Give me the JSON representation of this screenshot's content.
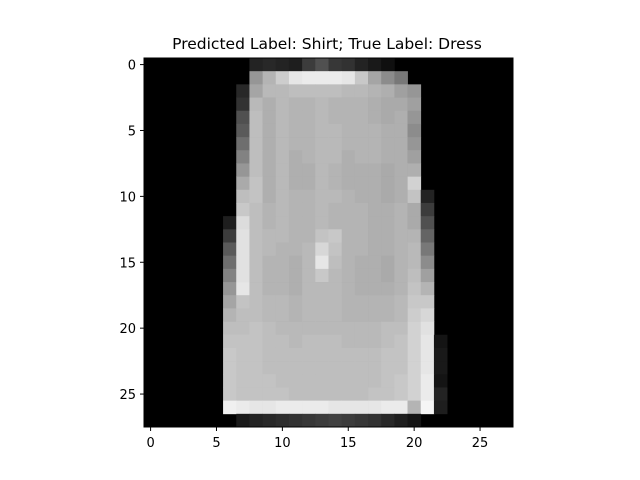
{
  "chart_data": {
    "type": "heatmap",
    "title": "Predicted Label: Shirt; True Label: Dress",
    "xlabel": "",
    "ylabel": "",
    "colormap": "gray",
    "vmin": 0,
    "vmax": 255,
    "rows": 28,
    "cols": 28,
    "x_ticks": [
      0,
      5,
      10,
      15,
      20,
      25
    ],
    "y_ticks": [
      0,
      5,
      10,
      15,
      20,
      25
    ],
    "xlim": [
      -0.5,
      27.5
    ],
    "ylim": [
      27.5,
      -0.5
    ],
    "grid": false,
    "pixel_rows": [
      {
        "start": 8,
        "values": [
          35,
          40,
          35,
          30,
          60,
          80,
          55,
          50,
          35,
          25,
          15
        ]
      },
      {
        "start": 8,
        "values": [
          150,
          180,
          205,
          230,
          235,
          235,
          235,
          230,
          200,
          165,
          140,
          120
        ]
      },
      {
        "start": 7,
        "values": [
          40,
          165,
          185,
          185,
          190,
          190,
          190,
          190,
          185,
          185,
          180,
          175,
          160,
          150
        ]
      },
      {
        "start": 7,
        "values": [
          50,
          185,
          175,
          185,
          180,
          180,
          185,
          180,
          180,
          180,
          175,
          170,
          170,
          160
        ]
      },
      {
        "start": 7,
        "values": [
          80,
          190,
          175,
          185,
          180,
          180,
          185,
          180,
          180,
          180,
          175,
          170,
          175,
          150
        ]
      },
      {
        "start": 7,
        "values": [
          90,
          190,
          175,
          185,
          180,
          180,
          185,
          185,
          180,
          180,
          180,
          175,
          175,
          140
        ]
      },
      {
        "start": 7,
        "values": [
          110,
          190,
          175,
          185,
          180,
          180,
          185,
          185,
          180,
          180,
          180,
          175,
          175,
          150
        ]
      },
      {
        "start": 7,
        "values": [
          130,
          190,
          175,
          185,
          175,
          180,
          185,
          185,
          175,
          180,
          180,
          175,
          175,
          160
        ]
      },
      {
        "start": 7,
        "values": [
          150,
          190,
          175,
          185,
          175,
          175,
          185,
          180,
          175,
          175,
          175,
          170,
          175,
          175
        ]
      },
      {
        "start": 7,
        "values": [
          170,
          195,
          175,
          185,
          175,
          175,
          185,
          180,
          175,
          175,
          175,
          170,
          175,
          210
        ]
      },
      {
        "start": 7,
        "values": [
          190,
          195,
          175,
          185,
          180,
          180,
          185,
          185,
          180,
          175,
          175,
          170,
          175,
          195,
          35
        ]
      },
      {
        "start": 7,
        "values": [
          200,
          190,
          180,
          185,
          180,
          180,
          185,
          180,
          180,
          180,
          175,
          175,
          180,
          170,
          60
        ]
      },
      {
        "start": 6,
        "values": [
          30,
          220,
          190,
          180,
          185,
          180,
          180,
          185,
          180,
          180,
          180,
          175,
          175,
          180,
          170,
          80
        ]
      },
      {
        "start": 6,
        "values": [
          60,
          225,
          190,
          185,
          185,
          180,
          180,
          195,
          200,
          180,
          180,
          175,
          175,
          180,
          180,
          100
        ]
      },
      {
        "start": 6,
        "values": [
          90,
          225,
          190,
          185,
          180,
          180,
          185,
          215,
          195,
          180,
          180,
          175,
          175,
          180,
          185,
          120
        ]
      },
      {
        "start": 6,
        "values": [
          110,
          225,
          190,
          180,
          180,
          175,
          185,
          230,
          190,
          180,
          175,
          175,
          170,
          180,
          185,
          140
        ]
      },
      {
        "start": 6,
        "values": [
          130,
          225,
          190,
          180,
          180,
          175,
          185,
          200,
          185,
          180,
          175,
          175,
          170,
          180,
          190,
          160
        ]
      },
      {
        "start": 6,
        "values": [
          150,
          230,
          190,
          180,
          180,
          175,
          185,
          185,
          185,
          180,
          175,
          175,
          175,
          180,
          195,
          180
        ]
      },
      {
        "start": 6,
        "values": [
          165,
          195,
          190,
          185,
          185,
          180,
          185,
          185,
          185,
          180,
          180,
          180,
          180,
          185,
          200,
          200
        ]
      },
      {
        "start": 6,
        "values": [
          180,
          190,
          190,
          185,
          185,
          180,
          185,
          185,
          185,
          180,
          180,
          180,
          180,
          185,
          205,
          215
        ]
      },
      {
        "start": 6,
        "values": [
          190,
          190,
          195,
          190,
          185,
          185,
          185,
          185,
          185,
          185,
          185,
          185,
          190,
          190,
          210,
          225
        ]
      },
      {
        "start": 6,
        "values": [
          195,
          195,
          195,
          190,
          190,
          185,
          190,
          190,
          190,
          185,
          185,
          185,
          190,
          195,
          210,
          230,
          20
        ]
      },
      {
        "start": 6,
        "values": [
          200,
          195,
          195,
          190,
          190,
          190,
          190,
          190,
          190,
          190,
          190,
          190,
          195,
          195,
          210,
          230,
          25
        ]
      },
      {
        "start": 6,
        "values": [
          200,
          195,
          195,
          190,
          190,
          190,
          190,
          190,
          190,
          190,
          190,
          190,
          195,
          195,
          210,
          230,
          25
        ]
      },
      {
        "start": 6,
        "values": [
          200,
          195,
          195,
          195,
          190,
          190,
          190,
          190,
          190,
          190,
          190,
          190,
          195,
          200,
          210,
          235,
          20
        ]
      },
      {
        "start": 6,
        "values": [
          200,
          195,
          195,
          195,
          195,
          190,
          190,
          190,
          190,
          190,
          190,
          195,
          195,
          200,
          210,
          235,
          35
        ]
      },
      {
        "start": 6,
        "values": [
          240,
          235,
          230,
          230,
          235,
          235,
          235,
          235,
          230,
          230,
          230,
          230,
          235,
          235,
          180,
          245,
          30
        ]
      },
      {
        "start": 7,
        "values": [
          25,
          35,
          40,
          45,
          50,
          55,
          60,
          65,
          60,
          55,
          50,
          40,
          30,
          20
        ]
      }
    ]
  }
}
